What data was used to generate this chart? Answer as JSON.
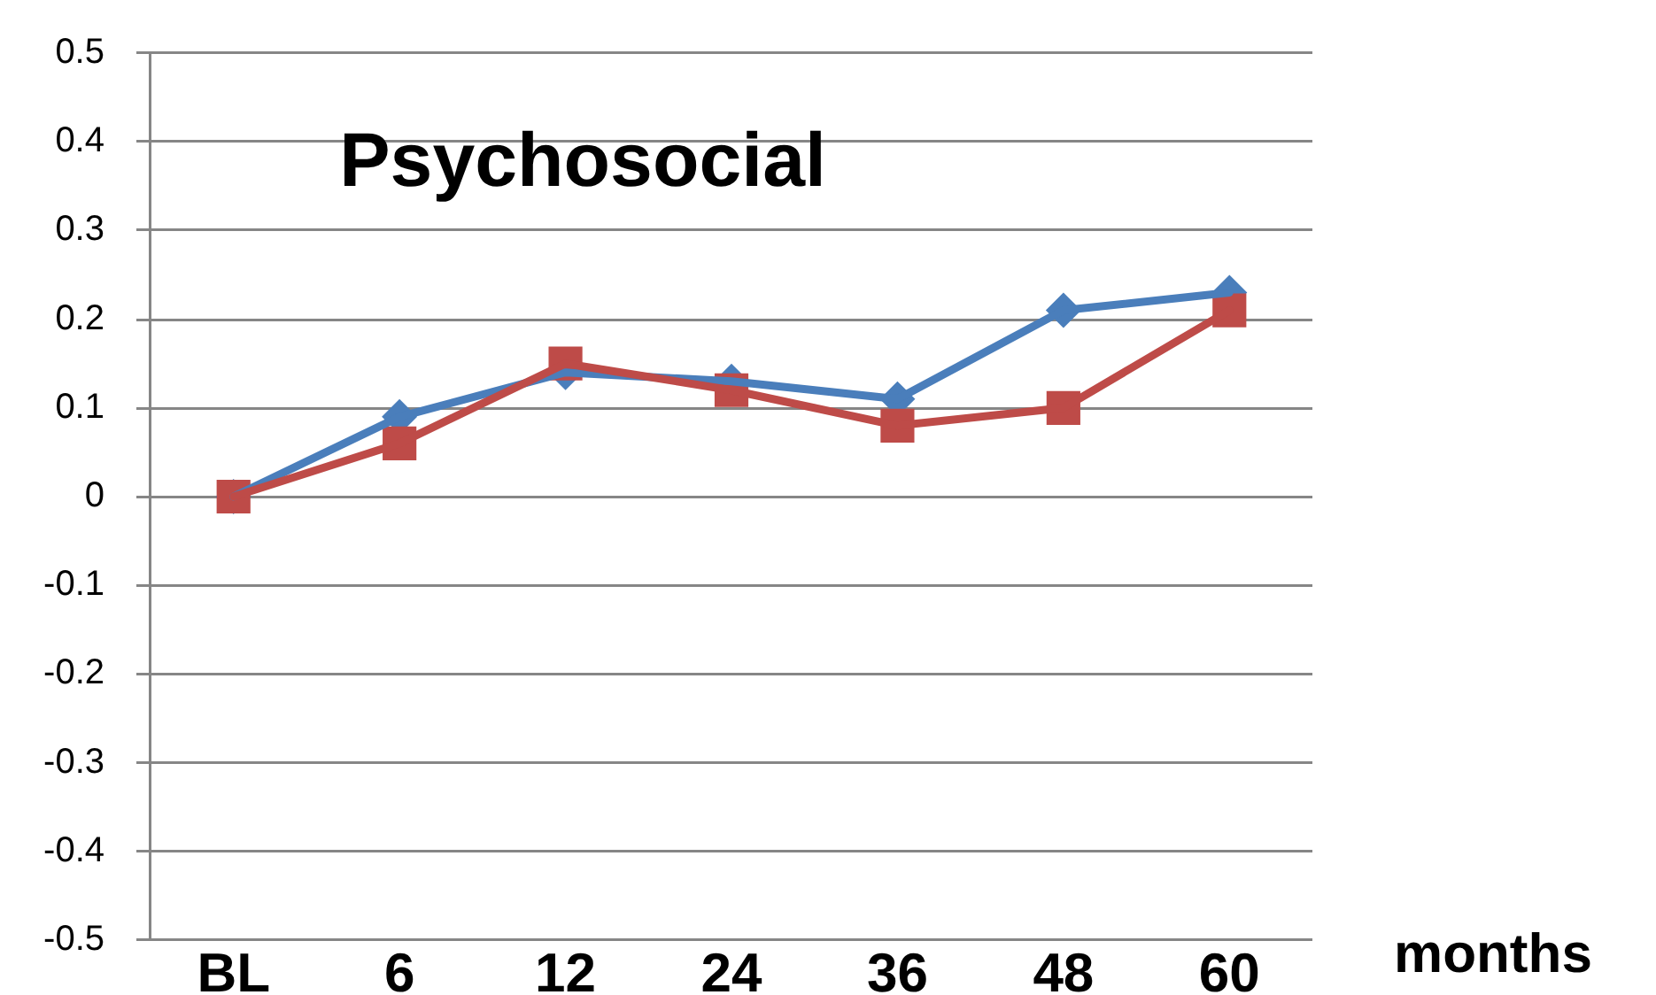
{
  "chart_data": {
    "type": "line",
    "title": "Psychosocial",
    "xlabel": "months",
    "categories": [
      "BL",
      "6",
      "12",
      "24",
      "36",
      "48",
      "60"
    ],
    "series": [
      {
        "color": "#4a7ebb",
        "marker": "diamond",
        "values": [
          0,
          0.09,
          0.14,
          0.13,
          0.11,
          0.21,
          0.23
        ]
      },
      {
        "color": "#be4b48",
        "marker": "square",
        "values": [
          0,
          0.06,
          0.15,
          0.12,
          0.08,
          0.1,
          0.21
        ]
      }
    ],
    "ylim": [
      -0.5,
      0.5
    ],
    "yticks": [
      -0.5,
      -0.4,
      -0.3,
      -0.2,
      -0.1,
      0,
      0.1,
      0.2,
      0.3,
      0.4,
      0.5
    ],
    "grid": "y",
    "line_style": "solid"
  }
}
